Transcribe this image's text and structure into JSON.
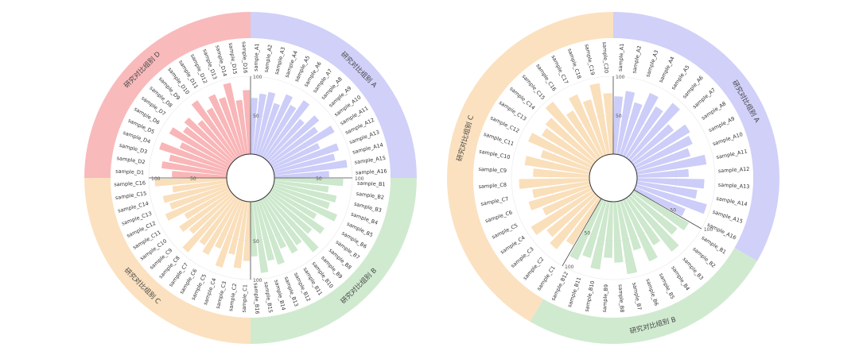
{
  "chart_data": [
    {
      "type": "bar",
      "subtype": "circular",
      "ylim": [
        0,
        100
      ],
      "ticks": [
        "50",
        "100"
      ],
      "groups": [
        {
          "label": "研究对比组别 A",
          "color": "#c8c8f8",
          "categories": [
            "sample_A1",
            "sample_A2",
            "sample_A3",
            "sample_A4",
            "sample_A5",
            "sample_A6",
            "sample_A7",
            "sample_A8",
            "sample_A9",
            "sample_A10",
            "sample_A11",
            "sample_A12",
            "sample_A13",
            "sample_A14",
            "sample_A15",
            "sample_A16"
          ],
          "values": [
            72,
            78,
            82,
            70,
            86,
            76,
            90,
            68,
            84,
            74,
            92,
            66,
            88,
            80,
            94,
            70
          ]
        },
        {
          "label": "研究对比组别 B",
          "color": "#c8e6c8",
          "categories": [
            "sample_B1",
            "sample_B2",
            "sample_B3",
            "sample_B4",
            "sample_B5",
            "sample_B6",
            "sample_B7",
            "sample_B8",
            "sample_B9",
            "sample_B10",
            "sample_B11",
            "sample_B12",
            "sample_B13",
            "sample_B14",
            "sample_B15",
            "sample_B16"
          ],
          "values": [
            88,
            70,
            82,
            76,
            90,
            66,
            84,
            72,
            94,
            74,
            80,
            68,
            86,
            78,
            92,
            70
          ]
        },
        {
          "label": "研究对比组别 C",
          "color": "#fadcb4",
          "categories": [
            "sample_C1",
            "sample_C2",
            "sample_C3",
            "sample_C4",
            "sample_C5",
            "sample_C6",
            "sample_C7",
            "sample_C8",
            "sample_C9",
            "sample_C10",
            "sample_C11",
            "sample_C12",
            "sample_C13",
            "sample_C14",
            "sample_C15",
            "sample_C16"
          ],
          "values": [
            76,
            86,
            70,
            90,
            68,
            82,
            74,
            94,
            72,
            80,
            66,
            88,
            78,
            84,
            70,
            92
          ]
        },
        {
          "label": "研究对比组别 D",
          "color": "#f8aeb0",
          "categories": [
            "sample_D1",
            "sample_D2",
            "sample_D3",
            "sample_D4",
            "sample_D5",
            "sample_D6",
            "sample_D7",
            "sample_D8",
            "sample_D9",
            "sample_D10",
            "sample_D11",
            "sample_D12",
            "sample_D13",
            "sample_D14",
            "sample_D15",
            "sample_D16"
          ],
          "values": [
            70,
            84,
            76,
            92,
            68,
            88,
            74,
            80,
            66,
            90,
            72,
            86,
            78,
            94,
            70,
            82
          ]
        }
      ]
    },
    {
      "type": "bar",
      "subtype": "circular",
      "ylim": [
        0,
        100
      ],
      "ticks": [
        "50",
        "100"
      ],
      "groups": [
        {
          "label": "研究对比组别 A",
          "color": "#c8c8f8",
          "categories": [
            "sample_A1",
            "sample_A2",
            "sample_A3",
            "sample_A4",
            "sample_A5",
            "sample_A6",
            "sample_A7",
            "sample_A8",
            "sample_A9",
            "sample_A10",
            "sample_A11",
            "sample_A12",
            "sample_A13",
            "sample_A14",
            "sample_A15",
            "sample_A16"
          ],
          "values": [
            74,
            82,
            70,
            88,
            76,
            92,
            68,
            84,
            80,
            72,
            90,
            66,
            86,
            78,
            94,
            70
          ]
        },
        {
          "label": "研究对比组别 B",
          "color": "#c8e6c8",
          "categories": [
            "sample_B1",
            "sample_B2",
            "sample_B3",
            "sample_B4",
            "sample_B5",
            "sample_B6",
            "sample_B7",
            "sample_B8",
            "sample_B9",
            "sample_B10",
            "sample_B11",
            "sample_B12"
          ],
          "values": [
            82,
            74,
            90,
            70,
            86,
            66,
            94,
            78,
            72,
            88,
            76,
            84
          ]
        },
        {
          "label": "研究对比组别 C",
          "color": "#fadcb4",
          "categories": [
            "sample_C1",
            "sample_C2",
            "sample_C3",
            "sample_C4",
            "sample_C5",
            "sample_C6",
            "sample_C7",
            "sample_C8",
            "sample_C9",
            "sample_C10",
            "sample_C11",
            "sample_C12",
            "sample_C13",
            "sample_C14",
            "sample_C15",
            "sample_C16",
            "sample_C17",
            "sample_C18",
            "sample_C19",
            "sample_C20"
          ],
          "values": [
            70,
            86,
            78,
            92,
            68,
            82,
            74,
            90,
            72,
            84,
            66,
            88,
            76,
            80,
            94,
            70,
            86,
            74,
            92,
            78
          ]
        }
      ]
    }
  ]
}
